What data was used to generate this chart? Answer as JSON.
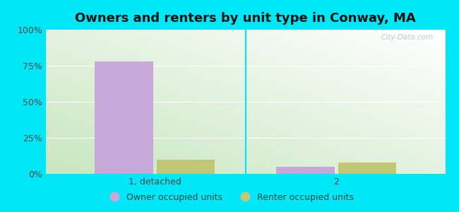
{
  "title": "Owners and renters by unit type in Conway, MA",
  "categories": [
    "1, detached",
    "2"
  ],
  "owner_values": [
    78.0,
    5.0
  ],
  "renter_values": [
    10.0,
    8.0
  ],
  "owner_color": "#c8a8d8",
  "renter_color": "#c0c878",
  "ylim": [
    0,
    100
  ],
  "yticks": [
    0,
    25,
    50,
    75,
    100
  ],
  "ytick_labels": [
    "0%",
    "25%",
    "50%",
    "75%",
    "100%"
  ],
  "bar_width": 0.32,
  "background_outer": "#00e8f8",
  "legend_owner": "Owner occupied units",
  "legend_renter": "Renter occupied units",
  "title_fontsize": 13,
  "watermark": "City-Data.com",
  "grid_color": "#ffffff",
  "tick_color": "#444444"
}
